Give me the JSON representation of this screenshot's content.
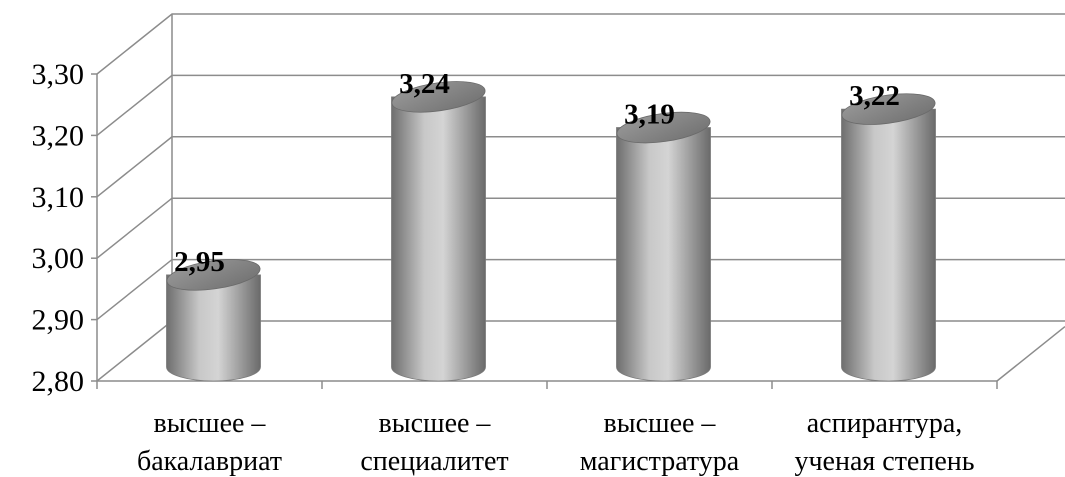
{
  "chart_data": {
    "type": "bar",
    "style": "3d-cylinder",
    "categories": [
      [
        "высшее –",
        "бакалавриат"
      ],
      [
        "высшее –",
        "специалитет"
      ],
      [
        "высшее –",
        "магистратура"
      ],
      [
        "аспирантура,",
        "ученая степень"
      ]
    ],
    "values": [
      2.95,
      3.24,
      3.19,
      3.22
    ],
    "data_labels": [
      "2,95",
      "3,24",
      "3,19",
      "3,22"
    ],
    "yticks": [
      2.8,
      2.9,
      3.0,
      3.1,
      3.2,
      3.3
    ],
    "ytick_labels": [
      "2,80",
      "2,90",
      "3,00",
      "3,10",
      "3,20",
      "3,30"
    ],
    "ylim": [
      2.8,
      3.3
    ],
    "grid": true,
    "legend": "none",
    "colors": {
      "bar_light": "#d2d2d2",
      "bar_mid": "#a6a6a6",
      "bar_dark": "#595959",
      "bar_top": "#8a8a8a",
      "grid": "#8c8c8c"
    }
  }
}
